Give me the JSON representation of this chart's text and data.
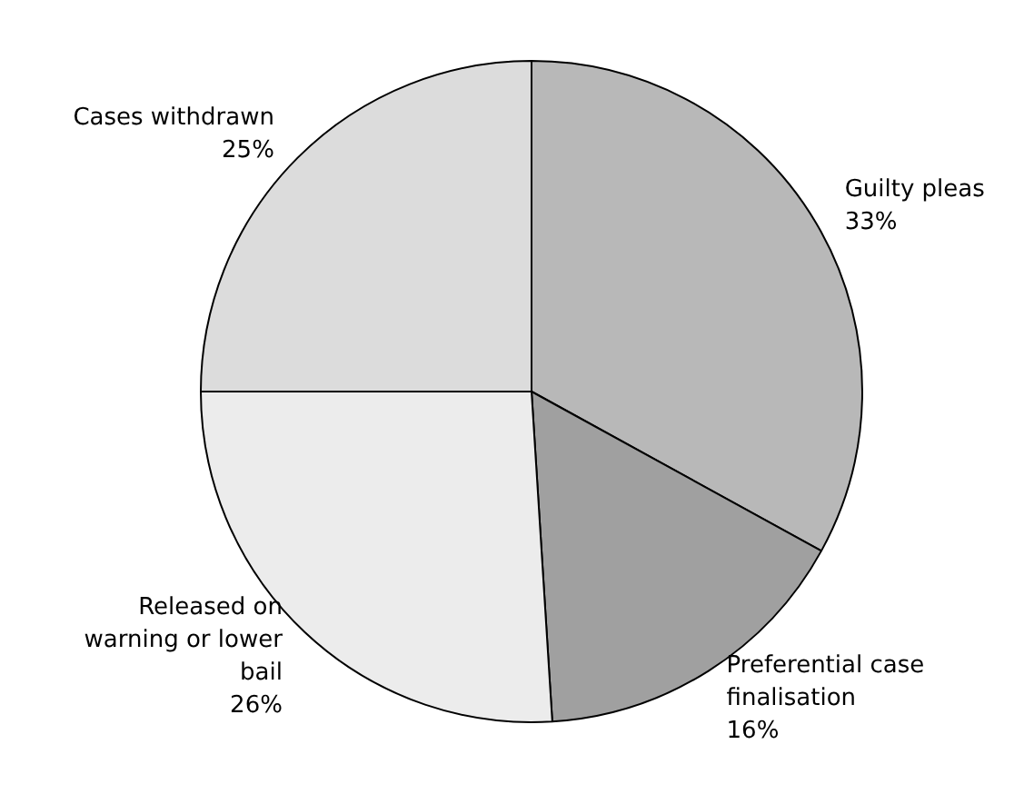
{
  "chart_data": {
    "type": "pie",
    "categories": [
      "Guilty pleas",
      "Preferential case finalisation",
      "Released on warning or lower bail",
      "Cases withdrawn"
    ],
    "values": [
      33,
      16,
      26,
      25
    ],
    "value_labels": [
      "33%",
      "16%",
      "26%",
      "25%"
    ],
    "colors": [
      "#b8b8b8",
      "#a0a0a0",
      "#ececec",
      "#dcdcdc"
    ]
  }
}
